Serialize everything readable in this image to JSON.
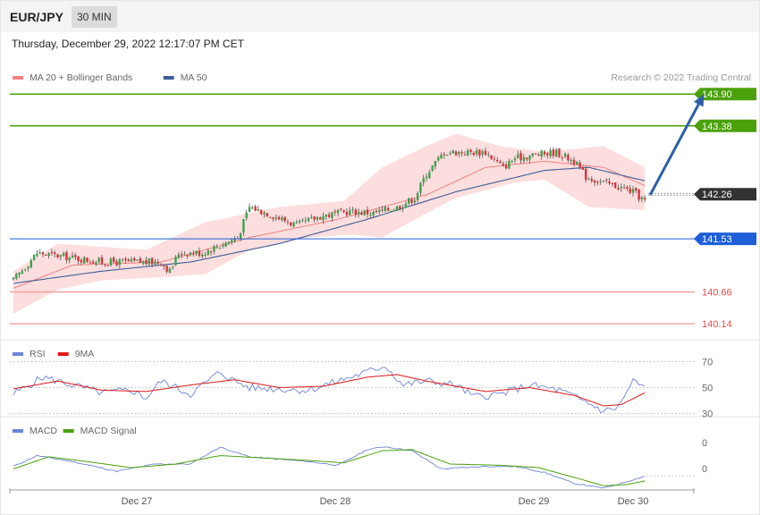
{
  "header": {
    "symbol": "EUR/JPY",
    "timeframe": "30 MIN"
  },
  "datetime": "Thursday, December 29, 2022 12:17:07 PM CET",
  "copyright": "Research © 2022 Trading Central",
  "colors": {
    "green": "#4aa10a",
    "blue": "#1e5fd8",
    "red": "#e64b4b",
    "dark": "#333333",
    "ma20": "#f08080",
    "ma50": "#3d5d9a",
    "arrow": "#2d5fa8",
    "rsi": "#6a85d8",
    "rsima": "#e01818",
    "macd": "#6a85d8",
    "signal": "#4aa10a"
  },
  "chart_data": [
    {
      "type": "candlestick",
      "title": "",
      "legend": [
        {
          "name": "MA 20 + Bollinger Bands",
          "color": "#f08080"
        },
        {
          "name": "MA 50",
          "color": "#3d5d9a"
        }
      ],
      "x_ticks": [
        "Dec 27",
        "Dec 28",
        "Dec 29",
        "Dec 30"
      ],
      "ylim": [
        139.95,
        144.05
      ],
      "levels": [
        {
          "value": 143.9,
          "label": "143.90",
          "style": "resistance",
          "color": "#4aa10a"
        },
        {
          "value": 143.38,
          "label": "143.38",
          "style": "resistance",
          "color": "#4aa10a"
        },
        {
          "value": 142.26,
          "label": "142.26",
          "style": "current",
          "color": "#333333"
        },
        {
          "value": 141.53,
          "label": "141.53",
          "style": "pivot",
          "color": "#1e5fd8"
        },
        {
          "value": 140.66,
          "label": "140.66",
          "style": "support",
          "color": "#e64b4b"
        },
        {
          "value": 140.14,
          "label": "140.14",
          "style": "support",
          "color": "#e64b4b"
        }
      ],
      "close_keypoints": [
        [
          0,
          140.85
        ],
        [
          8,
          141.3
        ],
        [
          30,
          141.15
        ],
        [
          50,
          141.15
        ],
        [
          53,
          141.0
        ],
        [
          56,
          141.3
        ],
        [
          64,
          141.3
        ],
        [
          76,
          141.55
        ],
        [
          80,
          142.05
        ],
        [
          86,
          141.95
        ],
        [
          96,
          141.75
        ],
        [
          104,
          141.9
        ],
        [
          114,
          141.98
        ],
        [
          122,
          141.95
        ],
        [
          130,
          142.05
        ],
        [
          136,
          142.2
        ],
        [
          140,
          142.6
        ],
        [
          146,
          142.95
        ],
        [
          150,
          142.95
        ],
        [
          160,
          142.95
        ],
        [
          166,
          142.7
        ],
        [
          170,
          142.85
        ],
        [
          176,
          142.9
        ],
        [
          184,
          142.95
        ],
        [
          190,
          142.8
        ],
        [
          194,
          142.55
        ],
        [
          200,
          142.45
        ],
        [
          204,
          142.4
        ],
        [
          210,
          142.3
        ],
        [
          214,
          142.15
        ]
      ],
      "forecast_arrow": {
        "from": [
          214,
          142.25
        ],
        "to": [
          228,
          143.9
        ]
      },
      "ma20_keypoints": [
        [
          0,
          140.72
        ],
        [
          20,
          141.1
        ],
        [
          50,
          141.15
        ],
        [
          80,
          141.55
        ],
        [
          110,
          141.85
        ],
        [
          140,
          142.25
        ],
        [
          160,
          142.7
        ],
        [
          180,
          142.8
        ],
        [
          200,
          142.7
        ],
        [
          214,
          142.4
        ]
      ],
      "ma50_keypoints": [
        [
          0,
          140.8
        ],
        [
          30,
          141.0
        ],
        [
          60,
          141.15
        ],
        [
          90,
          141.45
        ],
        [
          120,
          141.85
        ],
        [
          150,
          142.3
        ],
        [
          180,
          142.65
        ],
        [
          195,
          142.7
        ],
        [
          214,
          142.48
        ]
      ],
      "bb_upper_keypoints": [
        [
          0,
          141.0
        ],
        [
          15,
          141.45
        ],
        [
          45,
          141.35
        ],
        [
          65,
          141.8
        ],
        [
          90,
          142.05
        ],
        [
          112,
          142.15
        ],
        [
          125,
          142.7
        ],
        [
          140,
          143.05
        ],
        [
          150,
          143.25
        ],
        [
          165,
          143.05
        ],
        [
          180,
          142.95
        ],
        [
          200,
          143.05
        ],
        [
          214,
          142.7
        ]
      ],
      "bb_lower_keypoints": [
        [
          0,
          140.3
        ],
        [
          15,
          140.7
        ],
        [
          30,
          140.85
        ],
        [
          50,
          140.9
        ],
        [
          65,
          140.95
        ],
        [
          80,
          141.35
        ],
        [
          100,
          141.55
        ],
        [
          115,
          141.6
        ],
        [
          125,
          141.55
        ],
        [
          140,
          141.95
        ],
        [
          150,
          142.2
        ],
        [
          170,
          142.45
        ],
        [
          180,
          142.5
        ],
        [
          195,
          142.05
        ],
        [
          214,
          142.0
        ]
      ]
    },
    {
      "type": "line",
      "title": "",
      "legend": [
        {
          "name": "RSI",
          "color": "#6a85d8"
        },
        {
          "name": "9MA",
          "color": "#e01818"
        }
      ],
      "ylim": [
        25,
        75
      ],
      "y_ticks": [
        "70",
        "50",
        "30"
      ],
      "rsi_keypoints": [
        [
          0,
          45
        ],
        [
          10,
          58
        ],
        [
          20,
          52
        ],
        [
          30,
          46
        ],
        [
          40,
          48
        ],
        [
          45,
          42
        ],
        [
          50,
          55
        ],
        [
          60,
          45
        ],
        [
          70,
          62
        ],
        [
          75,
          55
        ],
        [
          80,
          50
        ],
        [
          90,
          49
        ],
        [
          100,
          48
        ],
        [
          110,
          55
        ],
        [
          120,
          62
        ],
        [
          126,
          67
        ],
        [
          132,
          52
        ],
        [
          140,
          55
        ],
        [
          150,
          52
        ],
        [
          156,
          43
        ],
        [
          165,
          45
        ],
        [
          175,
          52
        ],
        [
          185,
          48
        ],
        [
          195,
          38
        ],
        [
          200,
          32
        ],
        [
          205,
          35
        ],
        [
          210,
          55
        ],
        [
          214,
          50
        ]
      ],
      "ma9_keypoints": [
        [
          0,
          49
        ],
        [
          15,
          55
        ],
        [
          30,
          48
        ],
        [
          45,
          47
        ],
        [
          60,
          52
        ],
        [
          75,
          56
        ],
        [
          90,
          50
        ],
        [
          105,
          51
        ],
        [
          120,
          58
        ],
        [
          130,
          60
        ],
        [
          140,
          55
        ],
        [
          150,
          51
        ],
        [
          160,
          47
        ],
        [
          175,
          50
        ],
        [
          190,
          44
        ],
        [
          200,
          36
        ],
        [
          206,
          37
        ],
        [
          214,
          46
        ]
      ]
    },
    {
      "type": "line",
      "title": "",
      "legend": [
        {
          "name": "MACD",
          "color": "#6a85d8"
        },
        {
          "name": "MACD Signal",
          "color": "#4aa10a"
        }
      ],
      "ylim": [
        -1,
        1
      ],
      "y_ticks": [
        "0",
        "0"
      ],
      "macd_keypoints": [
        [
          0,
          -0.1
        ],
        [
          8,
          0.35
        ],
        [
          20,
          0.1
        ],
        [
          35,
          -0.3
        ],
        [
          48,
          0.0
        ],
        [
          60,
          0.0
        ],
        [
          70,
          0.7
        ],
        [
          80,
          0.3
        ],
        [
          90,
          0.2
        ],
        [
          100,
          0.1
        ],
        [
          110,
          -0.05
        ],
        [
          120,
          0.6
        ],
        [
          126,
          0.72
        ],
        [
          135,
          0.55
        ],
        [
          145,
          -0.2
        ],
        [
          160,
          -0.1
        ],
        [
          170,
          -0.1
        ],
        [
          180,
          -0.35
        ],
        [
          190,
          -0.8
        ],
        [
          200,
          -1.0
        ],
        [
          206,
          -0.8
        ],
        [
          214,
          -0.5
        ]
      ],
      "signal_keypoints": [
        [
          0,
          -0.2
        ],
        [
          12,
          0.3
        ],
        [
          25,
          0.1
        ],
        [
          40,
          -0.15
        ],
        [
          55,
          0.0
        ],
        [
          70,
          0.35
        ],
        [
          85,
          0.25
        ],
        [
          100,
          0.15
        ],
        [
          112,
          0.05
        ],
        [
          125,
          0.55
        ],
        [
          135,
          0.6
        ],
        [
          148,
          0.0
        ],
        [
          165,
          -0.05
        ],
        [
          178,
          -0.15
        ],
        [
          190,
          -0.55
        ],
        [
          200,
          -0.9
        ],
        [
          208,
          -0.85
        ],
        [
          214,
          -0.7
        ]
      ]
    }
  ]
}
